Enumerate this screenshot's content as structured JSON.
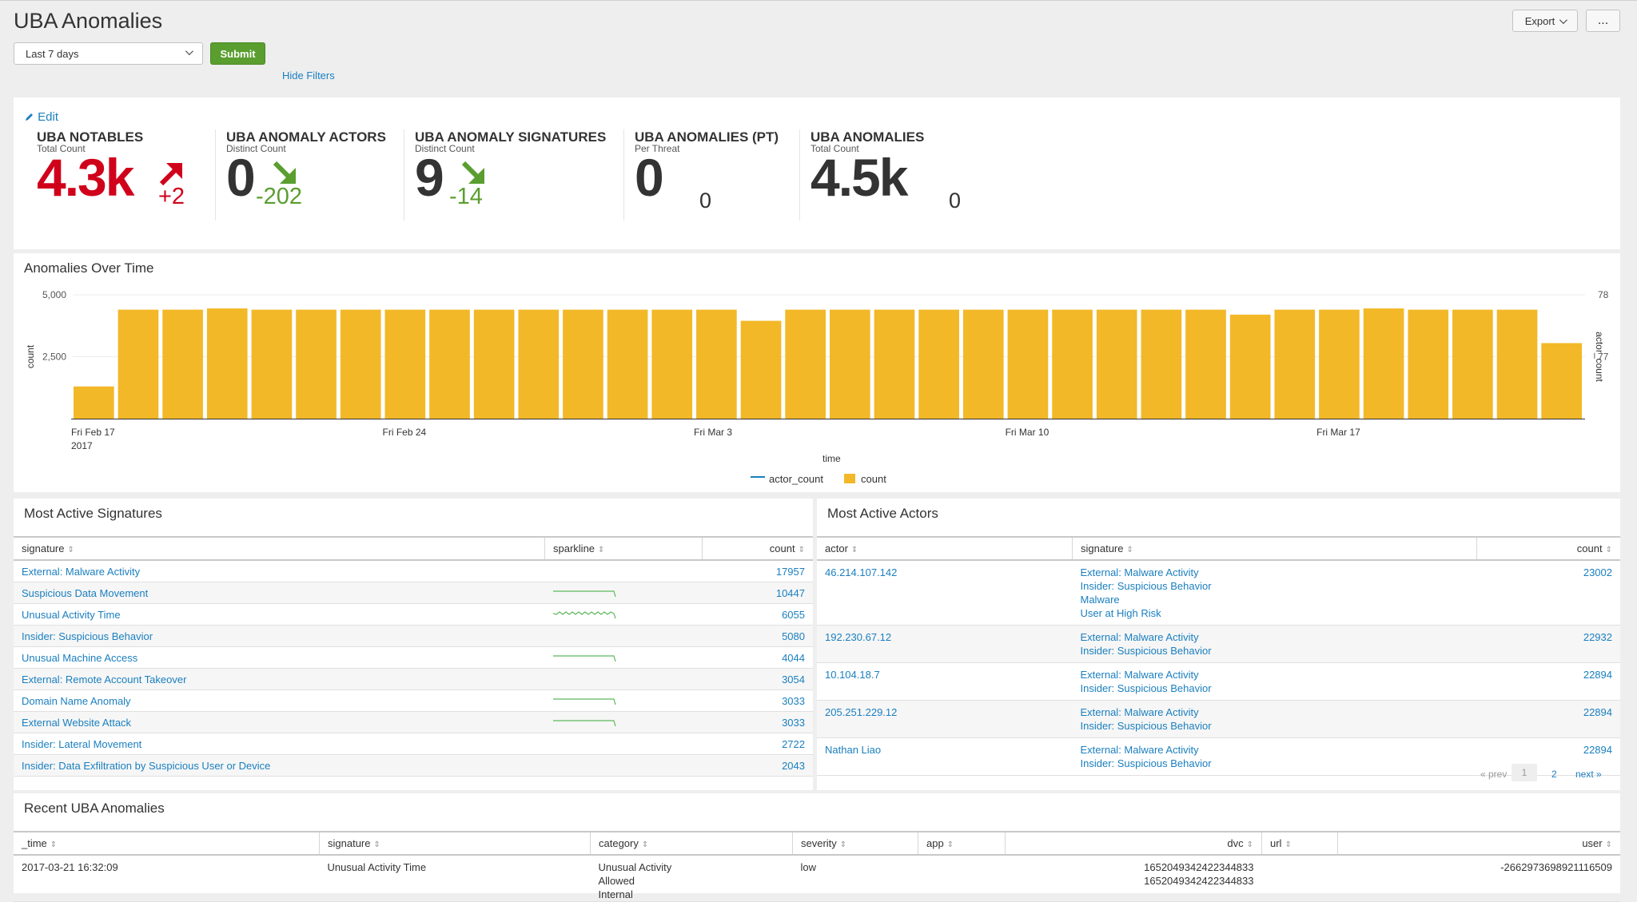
{
  "page": {
    "title": "UBA Anomalies"
  },
  "toolbar": {
    "export_label": "Export",
    "more_label": "..."
  },
  "filters": {
    "time_range": "Last 7 days",
    "submit_label": "Submit",
    "hide_filters_label": "Hide Filters"
  },
  "kpis": {
    "edit_label": "Edit",
    "items": [
      {
        "title": "UBA NOTABLES",
        "subtitle": "Total Count",
        "value": "4.3k",
        "delta": "+2",
        "trend": "up",
        "value_color": "#d0021b",
        "delta_color": "#d0021b"
      },
      {
        "title": "UBA ANOMALY ACTORS",
        "subtitle": "Distinct Count",
        "value": "0",
        "delta": "-202",
        "trend": "down",
        "value_color": "#333333",
        "delta_color": "#5a9e2f"
      },
      {
        "title": "UBA ANOMALY SIGNATURES",
        "subtitle": "Distinct Count",
        "value": "9",
        "delta": "-14",
        "trend": "down",
        "value_color": "#333333",
        "delta_color": "#5a9e2f"
      },
      {
        "title": "UBA ANOMALIES (PT)",
        "subtitle": "Per Threat",
        "value": "0",
        "delta": "0",
        "trend": "none",
        "value_color": "#333333",
        "delta_color": "#333333"
      },
      {
        "title": "UBA ANOMALIES",
        "subtitle": "Total Count",
        "value": "4.5k",
        "delta": "0",
        "trend": "none",
        "value_color": "#333333",
        "delta_color": "#333333"
      }
    ]
  },
  "chart": {
    "title": "Anomalies Over Time",
    "legend": {
      "actor_count": "actor_count",
      "count": "count"
    }
  },
  "chart_data": {
    "type": "bar",
    "title": "Anomalies Over Time",
    "xlabel": "time",
    "ylabel": "count",
    "y2label": "actor_count",
    "ylim": [
      0,
      5000
    ],
    "y2lim": [
      76,
      78
    ],
    "yticks": [
      "5,000",
      "2,500"
    ],
    "y2ticks": [
      "78",
      "77"
    ],
    "xticks": [
      {
        "label": "Fri Feb 17",
        "sublabel": "2017",
        "index": 0
      },
      {
        "label": "Fri Feb 24",
        "index": 7
      },
      {
        "label": "Fri Mar 3",
        "index": 14
      },
      {
        "label": "Fri Mar 10",
        "index": 21
      },
      {
        "label": "Fri Mar 17",
        "index": 28
      }
    ],
    "bar_color": "#f2b827",
    "line_color": "#1a7fbf",
    "series": [
      {
        "name": "count",
        "values": [
          1300,
          4400,
          4400,
          4450,
          4400,
          4400,
          4400,
          4400,
          4400,
          4400,
          4400,
          4400,
          4400,
          4400,
          4400,
          3950,
          4400,
          4400,
          4400,
          4400,
          4400,
          4400,
          4400,
          4400,
          4400,
          4400,
          4200,
          4400,
          4400,
          4450,
          4400,
          4400,
          4400,
          3050
        ]
      },
      {
        "name": "actor_count",
        "values": []
      }
    ]
  },
  "signatures": {
    "title": "Most Active Signatures",
    "columns": [
      "signature",
      "sparkline",
      "count"
    ],
    "rows": [
      {
        "signature": "External: Malware Activity",
        "count": "17957",
        "spark": "none"
      },
      {
        "signature": "Suspicious Data Movement",
        "count": "10447",
        "spark": "flat"
      },
      {
        "signature": "Unusual Activity Time",
        "count": "6055",
        "spark": "wave"
      },
      {
        "signature": "Insider: Suspicious Behavior",
        "count": "5080",
        "spark": "none"
      },
      {
        "signature": "Unusual Machine Access",
        "count": "4044",
        "spark": "flat"
      },
      {
        "signature": "External: Remote Account Takeover",
        "count": "3054",
        "spark": "none"
      },
      {
        "signature": "Domain Name Anomaly",
        "count": "3033",
        "spark": "flat"
      },
      {
        "signature": "External Website Attack",
        "count": "3033",
        "spark": "flat"
      },
      {
        "signature": "Insider: Lateral Movement",
        "count": "2722",
        "spark": "none"
      },
      {
        "signature": "Insider: Data Exfiltration by Suspicious User or Device",
        "count": "2043",
        "spark": "none"
      }
    ]
  },
  "actors": {
    "title": "Most Active Actors",
    "columns": [
      "actor",
      "signature",
      "count"
    ],
    "rows": [
      {
        "actor": "46.214.107.142",
        "signatures": [
          "External: Malware Activity",
          "Insider: Suspicious Behavior",
          "Malware",
          "User at High Risk"
        ],
        "count": "23002"
      },
      {
        "actor": "192.230.67.12",
        "signatures": [
          "External: Malware Activity",
          "Insider: Suspicious Behavior"
        ],
        "count": "22932"
      },
      {
        "actor": "10.104.18.7",
        "signatures": [
          "External: Malware Activity",
          "Insider: Suspicious Behavior"
        ],
        "count": "22894"
      },
      {
        "actor": "205.251.229.12",
        "signatures": [
          "External: Malware Activity",
          "Insider: Suspicious Behavior"
        ],
        "count": "22894"
      },
      {
        "actor": "Nathan Liao",
        "signatures": [
          "External: Malware Activity",
          "Insider: Suspicious Behavior"
        ],
        "count": "22894"
      }
    ],
    "pager": {
      "prev": "« prev",
      "pages": [
        "1",
        "2"
      ],
      "next": "next »"
    }
  },
  "recent": {
    "title": "Recent UBA Anomalies",
    "columns": [
      "_time",
      "signature",
      "category",
      "severity",
      "app",
      "dvc",
      "url",
      "user"
    ],
    "rows": [
      {
        "_time": "2017-03-21 16:32:09",
        "signature": "Unusual Activity Time",
        "category": [
          "Unusual Activity",
          "Allowed",
          "Internal"
        ],
        "severity": "low",
        "app": "",
        "dvc": [
          "1652049342422344833",
          "1652049342422344833"
        ],
        "url": "",
        "user": "-2662973698921116509"
      }
    ]
  }
}
